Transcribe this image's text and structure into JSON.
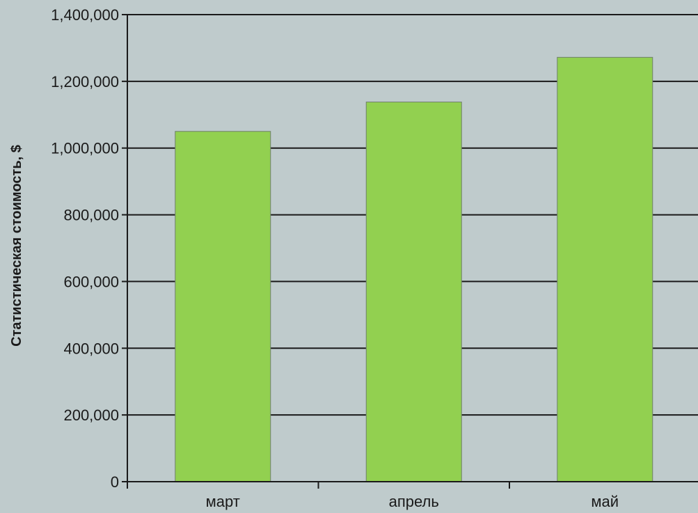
{
  "chart_data": {
    "type": "bar",
    "title": "",
    "xlabel": "",
    "ylabel": "Статистическая стоимость, $",
    "categories": [
      "март",
      "апрель",
      "май"
    ],
    "values": [
      1050000,
      1138000,
      1272000
    ],
    "ylim": [
      0,
      1400000
    ],
    "yticks": [
      0,
      200000,
      400000,
      600000,
      800000,
      1000000,
      1200000,
      1400000
    ],
    "ytick_labels": [
      "0",
      "200,000",
      "400,000",
      "600,000",
      "800,000",
      "1,000,000",
      "1,200,000",
      "1,400,000"
    ],
    "grid": true,
    "legend": "none",
    "colors": {
      "background": "#bfcbcc",
      "bar": "#92d050",
      "bar_border": "#6f7f6a",
      "grid": "#1a1a1a",
      "axis": "#1a1a1a"
    }
  }
}
